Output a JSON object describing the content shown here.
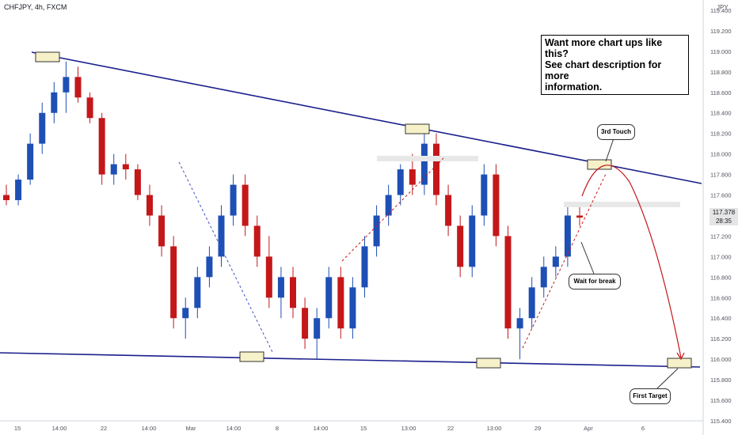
{
  "header": {
    "symbol": "CHFJPY, 4h, FXCM",
    "currency": "JPY"
  },
  "annotations": {
    "promo_lines": [
      "Want more chart ups like this?",
      "See chart description for more",
      "information."
    ],
    "third_touch": "3rd Touch",
    "wait_break": "Wait for break",
    "first_target": "First Target"
  },
  "price_label": {
    "price": "117.378",
    "countdown": "28:35"
  },
  "colors": {
    "bull": "#1e4fb5",
    "bear": "#c4171a",
    "trendline": "#1a1f8c",
    "guide": "#c4171a",
    "box_fill": "#f7f1c9"
  },
  "chart_data": {
    "type": "candlestick",
    "y_axis": {
      "ylim": [
        115.4,
        119.5
      ],
      "ticks": [
        "119.400",
        "119.200",
        "119.000",
        "118.800",
        "118.600",
        "118.400",
        "118.200",
        "118.000",
        "117.800",
        "117.600",
        "117.400",
        "117.200",
        "117.000",
        "116.800",
        "116.600",
        "116.400",
        "116.200",
        "116.000",
        "115.800",
        "115.600",
        "115.400"
      ]
    },
    "x_axis": {
      "ticks": [
        "15",
        "14:00",
        "22",
        "14:00",
        "Mar",
        "14:00",
        "8",
        "14:00",
        "15",
        "13:00",
        "22",
        "13:00",
        "29",
        "Apr",
        "6"
      ]
    },
    "trendlines": [
      {
        "name": "resistance",
        "from": [
          116.0,
          118.88
        ],
        "to": [
          116.9,
          117.64
        ]
      },
      {
        "name": "support",
        "from": [
          0,
          116.04
        ],
        "to": [
          1,
          115.91
        ]
      }
    ],
    "candles": [
      [
        117.6,
        117.7,
        117.5,
        117.55
      ],
      [
        117.55,
        117.8,
        117.5,
        117.75
      ],
      [
        117.75,
        118.2,
        117.7,
        118.1
      ],
      [
        118.1,
        118.5,
        118.0,
        118.4
      ],
      [
        118.4,
        118.7,
        118.3,
        118.6
      ],
      [
        118.6,
        118.9,
        118.4,
        118.75
      ],
      [
        118.75,
        118.85,
        118.5,
        118.55
      ],
      [
        118.55,
        118.6,
        118.3,
        118.35
      ],
      [
        118.35,
        118.4,
        117.7,
        117.8
      ],
      [
        117.8,
        118.0,
        117.7,
        117.9
      ],
      [
        117.9,
        118.0,
        117.75,
        117.85
      ],
      [
        117.85,
        117.9,
        117.55,
        117.6
      ],
      [
        117.6,
        117.7,
        117.3,
        117.4
      ],
      [
        117.4,
        117.5,
        117.0,
        117.1
      ],
      [
        117.1,
        117.2,
        116.3,
        116.4
      ],
      [
        116.4,
        116.6,
        116.2,
        116.5
      ],
      [
        116.5,
        116.9,
        116.4,
        116.8
      ],
      [
        116.8,
        117.1,
        116.7,
        117.0
      ],
      [
        117.0,
        117.5,
        116.9,
        117.4
      ],
      [
        117.4,
        117.8,
        117.3,
        117.7
      ],
      [
        117.7,
        117.8,
        117.2,
        117.3
      ],
      [
        117.3,
        117.4,
        116.9,
        117.0
      ],
      [
        117.0,
        117.2,
        116.5,
        116.6
      ],
      [
        116.6,
        116.9,
        116.4,
        116.8
      ],
      [
        116.8,
        116.9,
        116.4,
        116.5
      ],
      [
        116.5,
        116.6,
        116.1,
        116.2
      ],
      [
        116.2,
        116.5,
        116.0,
        116.4
      ],
      [
        116.4,
        116.9,
        116.3,
        116.8
      ],
      [
        116.8,
        116.9,
        116.2,
        116.3
      ],
      [
        116.3,
        116.8,
        116.2,
        116.7
      ],
      [
        116.7,
        117.2,
        116.6,
        117.1
      ],
      [
        117.1,
        117.5,
        117.0,
        117.4
      ],
      [
        117.4,
        117.7,
        117.3,
        117.6
      ],
      [
        117.6,
        117.9,
        117.5,
        117.85
      ],
      [
        117.85,
        118.0,
        117.6,
        117.7
      ],
      [
        117.7,
        118.2,
        117.6,
        118.1
      ],
      [
        118.1,
        118.2,
        117.5,
        117.6
      ],
      [
        117.6,
        117.7,
        117.2,
        117.3
      ],
      [
        117.3,
        117.4,
        116.8,
        116.9
      ],
      [
        116.9,
        117.5,
        116.8,
        117.4
      ],
      [
        117.4,
        117.9,
        117.3,
        117.8
      ],
      [
        117.8,
        117.9,
        117.1,
        117.2
      ],
      [
        117.2,
        117.3,
        116.2,
        116.3
      ],
      [
        116.3,
        116.5,
        116.0,
        116.4
      ],
      [
        116.4,
        116.8,
        116.3,
        116.7
      ],
      [
        116.7,
        117.0,
        116.6,
        116.9
      ],
      [
        116.9,
        117.1,
        116.8,
        117.0
      ],
      [
        117.0,
        117.5,
        116.9,
        117.4
      ],
      [
        117.4,
        117.5,
        117.3,
        117.38
      ]
    ]
  }
}
